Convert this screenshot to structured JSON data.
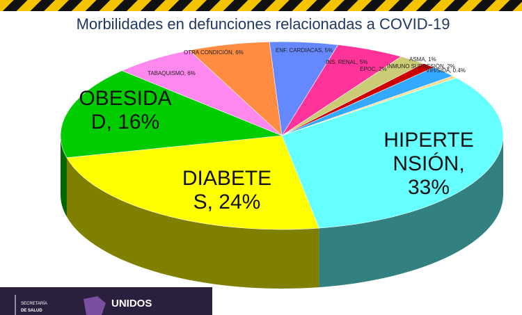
{
  "chart_data": {
    "type": "pie3d",
    "title": "Morbilidades en defunciones relacionadas a COVID-19",
    "values": [
      33,
      24,
      16,
      6,
      6,
      5,
      5,
      2,
      1,
      2,
      0.4
    ],
    "value_labels": [
      "HIPERTENSIÓN, 33%",
      "DIABETES, 24%",
      "OBESIDAD, 16%",
      "TABAQUISMO, 6%",
      "OTRA CONDICIÓN, 6%",
      "ENF. CARDIACAS, 5%",
      "INS. RENAL, 5%",
      "EPOC, 2%",
      "ASMA, 1%",
      "INMUNO SUPRESIÓN, 2%",
      "VIH/SIDA, 0.4%"
    ],
    "colors": [
      "#66ffff",
      "#ffff00",
      "#00cc00",
      "#ff88ee",
      "#ff8c40",
      "#6688ff",
      "#ff3399",
      "#cccc77",
      "#cc0000",
      "#33aaff",
      "#ffdd88"
    ]
  },
  "footer": {
    "org_line1": "SECRETARÍA",
    "org_line2": "DE SALUD",
    "slogan": "UNIDOS"
  }
}
